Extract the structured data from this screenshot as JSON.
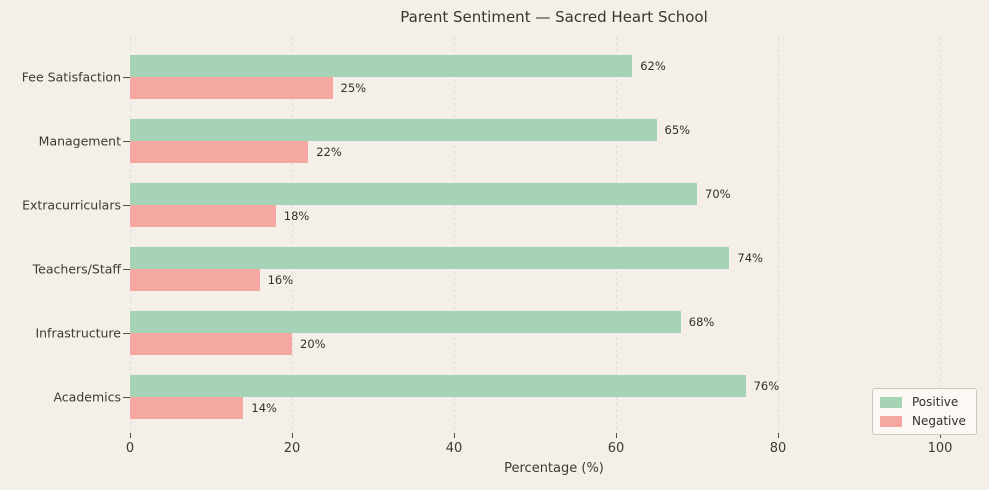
{
  "title": "Parent Sentiment — Sacred Heart School",
  "chart_data": {
    "type": "bar",
    "orientation": "horizontal",
    "categories": [
      "Fee Satisfaction",
      "Management",
      "Extracurriculars",
      "Teachers/Staff",
      "Infrastructure",
      "Academics"
    ],
    "categories_order": "top-to-bottom",
    "series": [
      {
        "name": "Positive",
        "color": "#a6d2b5",
        "values": [
          62,
          65,
          70,
          74,
          68,
          76
        ]
      },
      {
        "name": "Negative",
        "color": "#f5a7a1",
        "values": [
          25,
          22,
          18,
          16,
          20,
          14
        ]
      }
    ],
    "value_label_suffix": "%",
    "xlabel": "Percentage (%)",
    "xticks": [
      0,
      20,
      40,
      60,
      80,
      100
    ],
    "xlim": [
      0,
      105
    ],
    "grid": "vertical-dashed",
    "legend": {
      "position": "lower-right",
      "entries": [
        "Positive",
        "Negative"
      ]
    }
  },
  "colors": {
    "background": "#f4efe9",
    "positive": "#a6d2b5",
    "negative": "#f5a7a1",
    "gridline": "#e1dcd5",
    "tick": "#55504b",
    "text": "#3a3632",
    "legend_background": "#fcf9f5",
    "legend_border": "#ccc7c0"
  }
}
